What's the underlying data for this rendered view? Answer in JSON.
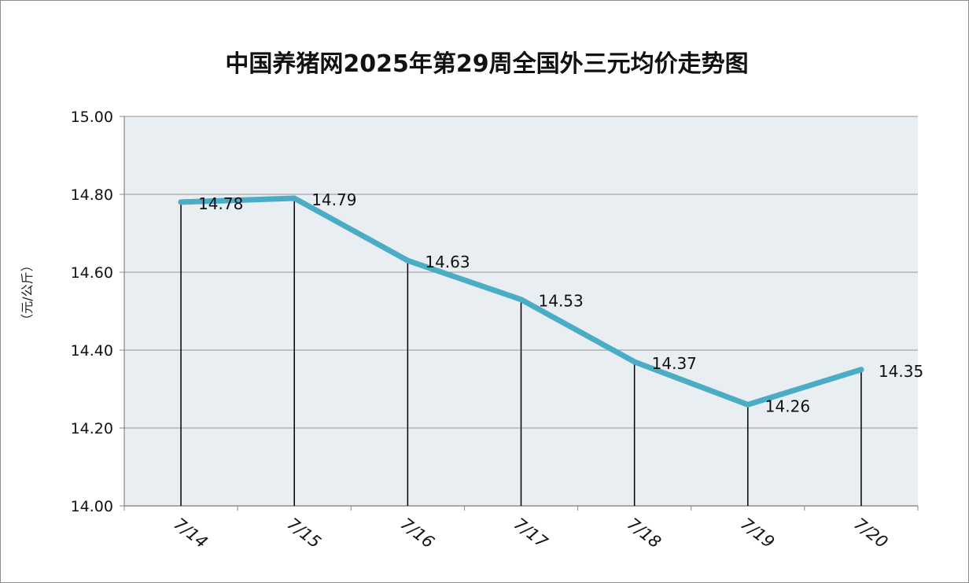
{
  "chart_data": {
    "type": "line",
    "title": "中国养猪网2025年第29周全国外三元均价走势图",
    "ylabel": "（元/公斤）",
    "xlabel": "",
    "categories": [
      "7/14",
      "7/15",
      "7/16",
      "7/17",
      "7/18",
      "7/19",
      "7/20"
    ],
    "series": [
      {
        "values": [
          14.78,
          14.79,
          14.63,
          14.53,
          14.37,
          14.26,
          14.35
        ],
        "data_labels": [
          "14.78",
          "14.79",
          "14.63",
          "14.53",
          "14.37",
          "14.26",
          "14.35"
        ]
      }
    ],
    "ylim": [
      14.0,
      15.0
    ],
    "y_ticks": [
      "14.00",
      "14.20",
      "14.40",
      "14.60",
      "14.80",
      "15.00"
    ],
    "grid": true,
    "legend": "none",
    "colors": {
      "line": "#4bacc6",
      "plot_background": "#e8eef2",
      "gridline": "#a6a6a6",
      "drop_line": "#000000"
    }
  }
}
